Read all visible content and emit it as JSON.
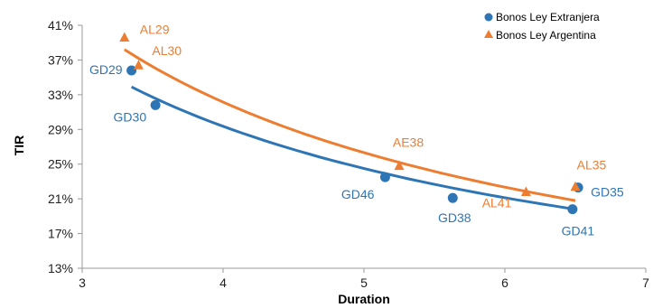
{
  "chart_data": {
    "type": "scatter",
    "title": "",
    "xlabel": "Duration",
    "ylabel": "TIR",
    "xlim": [
      3,
      7
    ],
    "ylim": [
      13,
      41
    ],
    "x_ticks": [
      3,
      4,
      5,
      6,
      7
    ],
    "y_ticks": [
      13,
      17,
      21,
      25,
      29,
      33,
      37,
      41
    ],
    "y_unit": "%",
    "grid": false,
    "legend_position": "top-right",
    "series": [
      {
        "name": "Bonos Ley Extranjera",
        "marker": "circle",
        "color": "#2e75b6",
        "points": [
          {
            "label": "GD29",
            "x": 3.35,
            "y": 35.8
          },
          {
            "label": "GD30",
            "x": 3.52,
            "y": 31.8
          },
          {
            "label": "GD46",
            "x": 5.15,
            "y": 23.5
          },
          {
            "label": "GD38",
            "x": 5.63,
            "y": 21.1
          },
          {
            "label": "GD35",
            "x": 6.52,
            "y": 22.3
          },
          {
            "label": "GD41",
            "x": 6.48,
            "y": 19.8
          }
        ],
        "trendline": {
          "type": "power",
          "x_from": 3.35,
          "x_to": 6.5,
          "y_from": 33.9,
          "y_to": 19.8
        }
      },
      {
        "name": "Bonos Ley Argentina",
        "marker": "triangle",
        "color": "#ed7d31",
        "points": [
          {
            "label": "AL29",
            "x": 3.3,
            "y": 39.6
          },
          {
            "label": "AL30",
            "x": 3.4,
            "y": 36.4
          },
          {
            "label": "AE38",
            "x": 5.25,
            "y": 24.8
          },
          {
            "label": "AL41",
            "x": 6.15,
            "y": 21.8
          },
          {
            "label": "AL35",
            "x": 6.5,
            "y": 22.4
          }
        ],
        "trendline": {
          "type": "power",
          "x_from": 3.3,
          "x_to": 6.5,
          "y_from": 38.2,
          "y_to": 20.8
        }
      }
    ]
  }
}
